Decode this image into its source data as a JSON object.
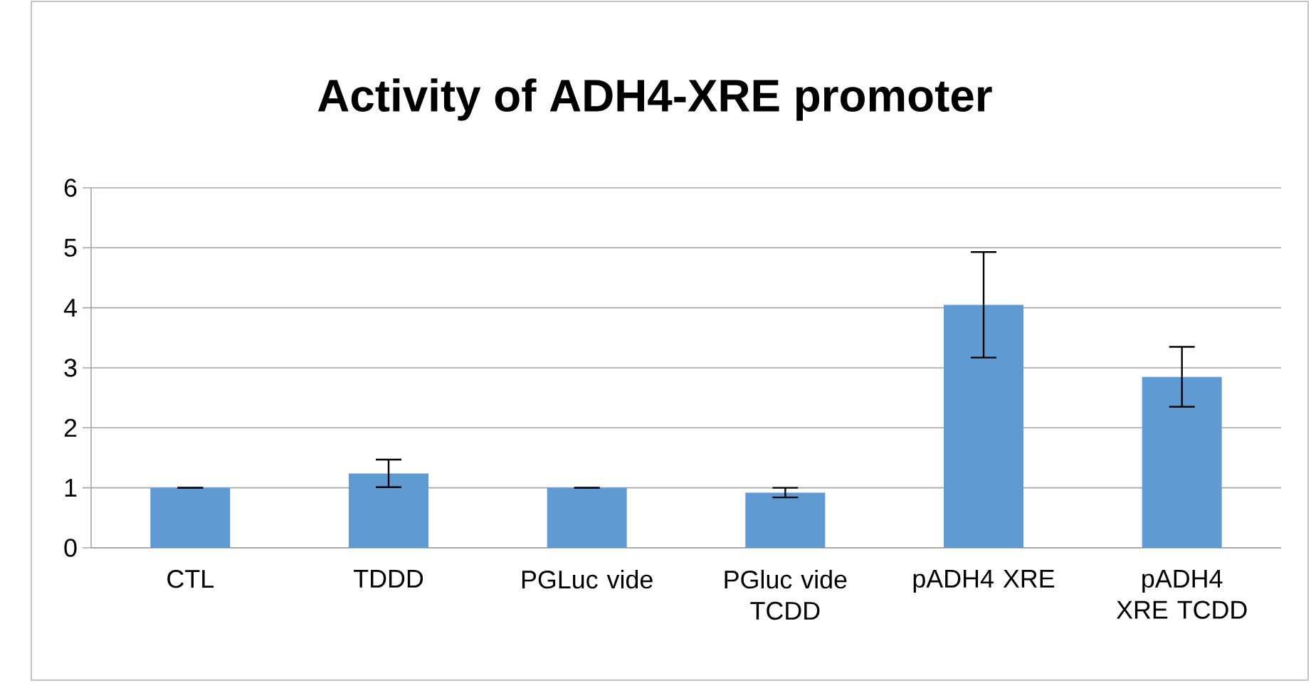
{
  "chart_data": {
    "type": "bar",
    "title": "Activity  of ADH4-XRE promoter",
    "categories": [
      "CTL",
      "TDDD",
      "PGLuc vide",
      "PGluc vide TCDD",
      "pADH4 XRE",
      "pADH4 XRE TCDD"
    ],
    "values": [
      1.0,
      1.24,
      1.0,
      0.92,
      4.05,
      2.85
    ],
    "errors": [
      0,
      0.23,
      0,
      0.08,
      0.88,
      0.5
    ],
    "color": "#5f9bd2",
    "ylim": [
      0,
      6
    ],
    "yticks": [
      0,
      1,
      2,
      3,
      4,
      5,
      6
    ],
    "grid": "y"
  }
}
